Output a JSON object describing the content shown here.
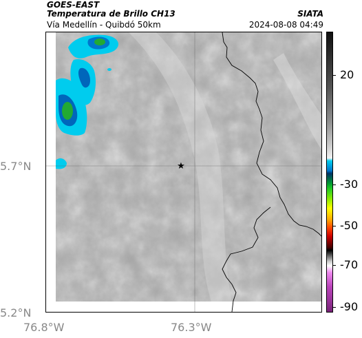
{
  "header": {
    "satellite": "GOES-EAST",
    "product": "Temperatura de Brillo CH13",
    "region": "Vía Medellín - Quibdó 50km",
    "agency": "SIATA",
    "timestamp": "2024-08-08 04:49"
  },
  "map": {
    "latitude_labels": [
      "5.7°N",
      "5.2°N"
    ],
    "longitude_labels": [
      "76.8°W",
      "76.3°W"
    ],
    "marker_icon": "star-icon",
    "colors": {
      "cloud_cold": "#00ccee",
      "cloud_core": "#0066cc",
      "cloud_green": "#22aa33",
      "gray_background": "#a8a8a8",
      "border_line": "#000000"
    }
  },
  "colorbar": {
    "tick_labels": [
      "20",
      "-30",
      "-50",
      "-70",
      "-90"
    ],
    "tick_values": [
      20,
      -30,
      -50,
      -70,
      -90
    ]
  }
}
